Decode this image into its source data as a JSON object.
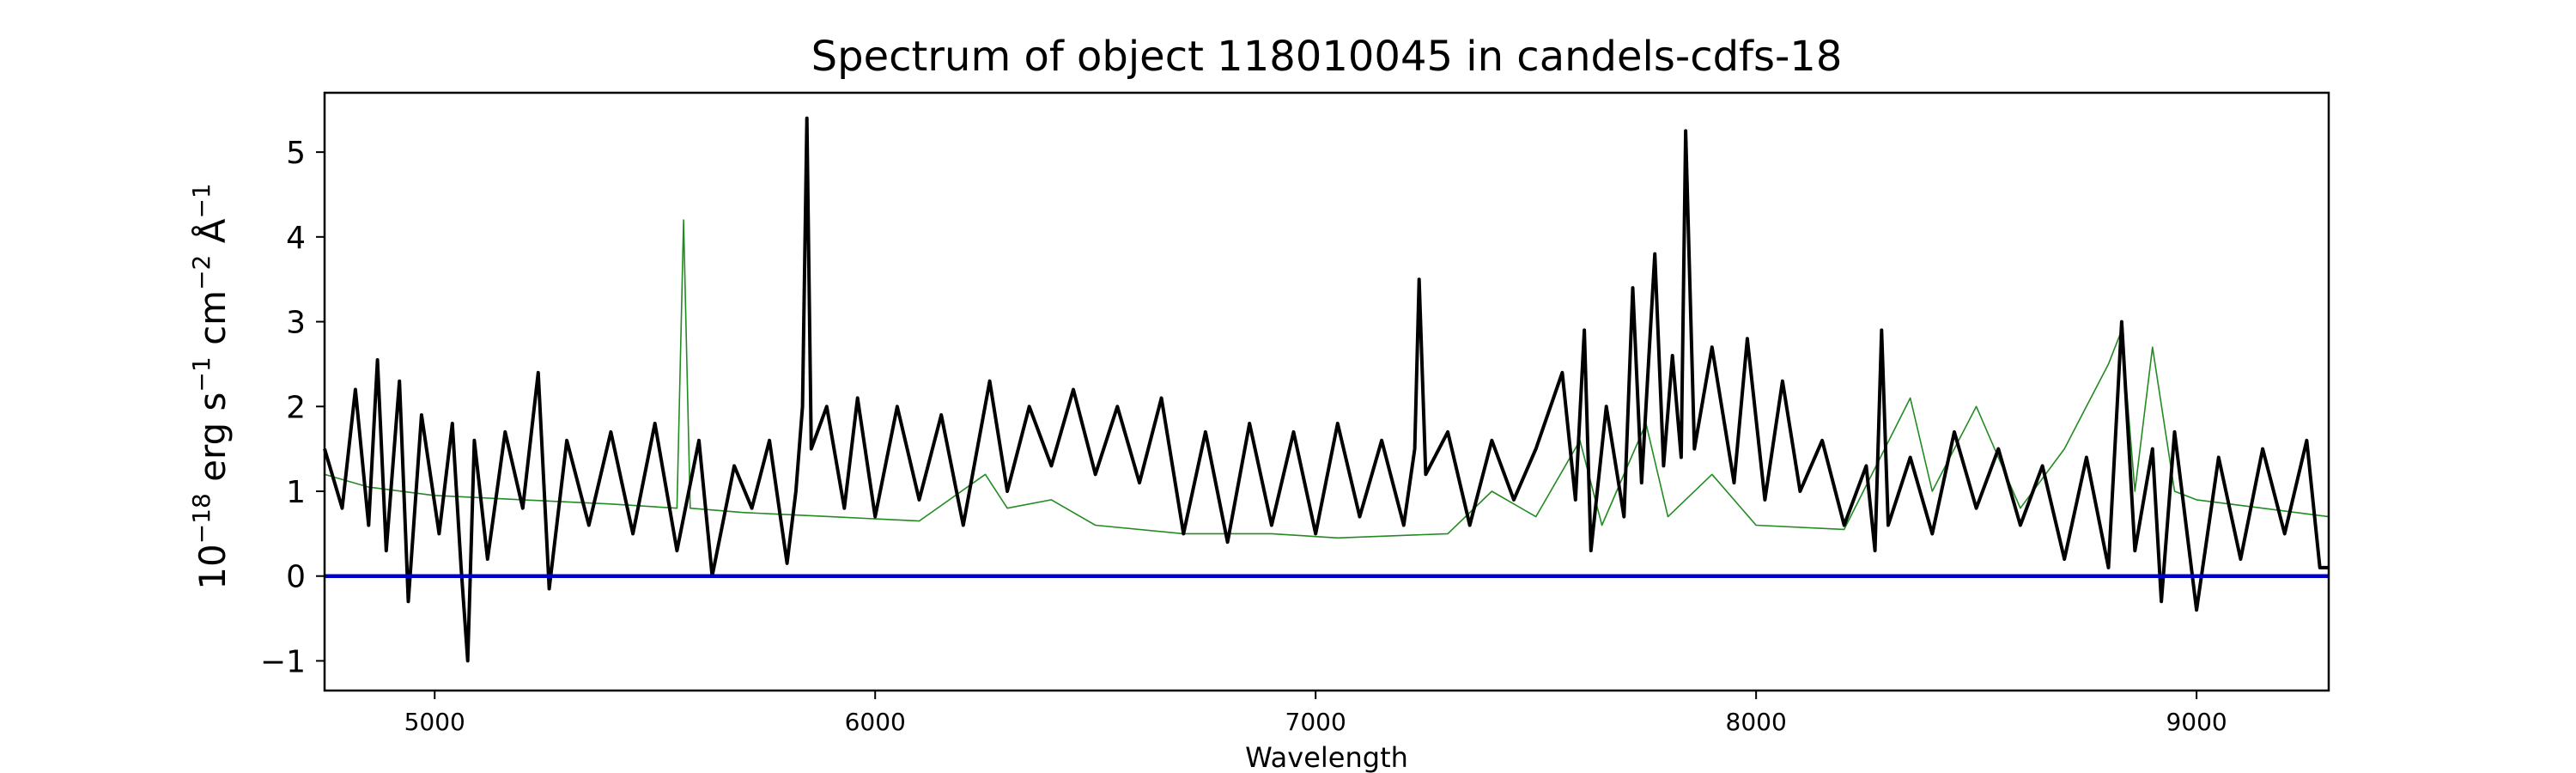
{
  "chart_data": {
    "type": "line",
    "title": "Spectrum of object 118010045 in candels-cdfs-18",
    "xlabel": "Wavelength",
    "ylabel_parts": {
      "base": "10",
      "exp": "−18",
      "erg": " erg s",
      "s_exp": "−1",
      "cm": " cm",
      "cm_exp": "−2",
      "ang": " Å",
      "ang_exp": "−1"
    },
    "xlim": [
      4750,
      9300
    ],
    "ylim": [
      -1.35,
      5.7
    ],
    "xticks": [
      5000,
      6000,
      7000,
      8000,
      9000
    ],
    "xtick_labels": [
      "5000",
      "6000",
      "7000",
      "8000",
      "9000"
    ],
    "yticks": [
      -1,
      0,
      1,
      2,
      3,
      4,
      5
    ],
    "ytick_labels": [
      "−1",
      "0",
      "1",
      "2",
      "3",
      "4",
      "5"
    ],
    "grid": false,
    "series": [
      {
        "role": "flux",
        "color": "#000000",
        "points": [
          [
            4750,
            1.5
          ],
          [
            4790,
            0.8
          ],
          [
            4820,
            2.2
          ],
          [
            4850,
            0.6
          ],
          [
            4870,
            2.55
          ],
          [
            4890,
            0.3
          ],
          [
            4920,
            2.3
          ],
          [
            4940,
            -0.3
          ],
          [
            4970,
            1.9
          ],
          [
            5010,
            0.5
          ],
          [
            5040,
            1.8
          ],
          [
            5060,
            0.1
          ],
          [
            5075,
            -1.0
          ],
          [
            5090,
            1.6
          ],
          [
            5120,
            0.2
          ],
          [
            5160,
            1.7
          ],
          [
            5200,
            0.8
          ],
          [
            5235,
            2.4
          ],
          [
            5260,
            -0.15
          ],
          [
            5300,
            1.6
          ],
          [
            5350,
            0.6
          ],
          [
            5400,
            1.7
          ],
          [
            5450,
            0.5
          ],
          [
            5500,
            1.8
          ],
          [
            5550,
            0.3
          ],
          [
            5600,
            1.6
          ],
          [
            5630,
            0.0
          ],
          [
            5680,
            1.3
          ],
          [
            5720,
            0.8
          ],
          [
            5760,
            1.6
          ],
          [
            5800,
            0.15
          ],
          [
            5820,
            1.0
          ],
          [
            5835,
            2.0
          ],
          [
            5845,
            5.4
          ],
          [
            5855,
            1.5
          ],
          [
            5890,
            2.0
          ],
          [
            5930,
            0.8
          ],
          [
            5960,
            2.1
          ],
          [
            6000,
            0.7
          ],
          [
            6050,
            2.0
          ],
          [
            6100,
            0.9
          ],
          [
            6150,
            1.9
          ],
          [
            6200,
            0.6
          ],
          [
            6260,
            2.3
          ],
          [
            6300,
            1.0
          ],
          [
            6350,
            2.0
          ],
          [
            6400,
            1.3
          ],
          [
            6450,
            2.2
          ],
          [
            6500,
            1.2
          ],
          [
            6550,
            2.0
          ],
          [
            6600,
            1.1
          ],
          [
            6650,
            2.1
          ],
          [
            6700,
            0.5
          ],
          [
            6750,
            1.7
          ],
          [
            6800,
            0.4
          ],
          [
            6850,
            1.8
          ],
          [
            6900,
            0.6
          ],
          [
            6950,
            1.7
          ],
          [
            7000,
            0.5
          ],
          [
            7050,
            1.8
          ],
          [
            7100,
            0.7
          ],
          [
            7150,
            1.6
          ],
          [
            7200,
            0.6
          ],
          [
            7225,
            1.5
          ],
          [
            7235,
            3.5
          ],
          [
            7250,
            1.2
          ],
          [
            7300,
            1.7
          ],
          [
            7350,
            0.6
          ],
          [
            7400,
            1.6
          ],
          [
            7450,
            0.9
          ],
          [
            7500,
            1.5
          ],
          [
            7560,
            2.4
          ],
          [
            7590,
            0.9
          ],
          [
            7610,
            2.9
          ],
          [
            7625,
            0.3
          ],
          [
            7660,
            2.0
          ],
          [
            7700,
            0.7
          ],
          [
            7720,
            3.4
          ],
          [
            7740,
            1.1
          ],
          [
            7770,
            3.8
          ],
          [
            7790,
            1.3
          ],
          [
            7810,
            2.6
          ],
          [
            7830,
            1.4
          ],
          [
            7840,
            5.25
          ],
          [
            7860,
            1.5
          ],
          [
            7900,
            2.7
          ],
          [
            7950,
            1.1
          ],
          [
            7980,
            2.8
          ],
          [
            8020,
            0.9
          ],
          [
            8060,
            2.3
          ],
          [
            8100,
            1.0
          ],
          [
            8150,
            1.6
          ],
          [
            8200,
            0.6
          ],
          [
            8250,
            1.3
          ],
          [
            8270,
            0.3
          ],
          [
            8285,
            2.9
          ],
          [
            8300,
            0.6
          ],
          [
            8350,
            1.4
          ],
          [
            8400,
            0.5
          ],
          [
            8450,
            1.7
          ],
          [
            8500,
            0.8
          ],
          [
            8550,
            1.5
          ],
          [
            8600,
            0.6
          ],
          [
            8650,
            1.3
          ],
          [
            8700,
            0.2
          ],
          [
            8750,
            1.4
          ],
          [
            8800,
            0.1
          ],
          [
            8830,
            3.0
          ],
          [
            8860,
            0.3
          ],
          [
            8900,
            1.5
          ],
          [
            8920,
            -0.3
          ],
          [
            8950,
            1.7
          ],
          [
            9000,
            -0.4
          ],
          [
            9050,
            1.4
          ],
          [
            9100,
            0.2
          ],
          [
            9150,
            1.5
          ],
          [
            9200,
            0.5
          ],
          [
            9250,
            1.6
          ],
          [
            9280,
            0.1
          ],
          [
            9300,
            0.1
          ]
        ]
      },
      {
        "role": "error",
        "color": "#228b22",
        "points": [
          [
            4750,
            1.2
          ],
          [
            4850,
            1.05
          ],
          [
            5000,
            0.95
          ],
          [
            5200,
            0.9
          ],
          [
            5400,
            0.85
          ],
          [
            5550,
            0.8
          ],
          [
            5565,
            4.2
          ],
          [
            5580,
            0.8
          ],
          [
            5700,
            0.75
          ],
          [
            5900,
            0.7
          ],
          [
            6100,
            0.65
          ],
          [
            6250,
            1.2
          ],
          [
            6300,
            0.8
          ],
          [
            6400,
            0.9
          ],
          [
            6500,
            0.6
          ],
          [
            6700,
            0.5
          ],
          [
            6900,
            0.5
          ],
          [
            7050,
            0.45
          ],
          [
            7300,
            0.5
          ],
          [
            7400,
            1.0
          ],
          [
            7500,
            0.7
          ],
          [
            7600,
            1.6
          ],
          [
            7650,
            0.6
          ],
          [
            7750,
            1.8
          ],
          [
            7800,
            0.7
          ],
          [
            7900,
            1.2
          ],
          [
            8000,
            0.6
          ],
          [
            8200,
            0.55
          ],
          [
            8350,
            2.1
          ],
          [
            8400,
            1.0
          ],
          [
            8500,
            2.0
          ],
          [
            8600,
            0.8
          ],
          [
            8700,
            1.5
          ],
          [
            8800,
            2.5
          ],
          [
            8830,
            2.9
          ],
          [
            8860,
            1.0
          ],
          [
            8900,
            2.7
          ],
          [
            8950,
            1.0
          ],
          [
            9000,
            0.9
          ],
          [
            9150,
            0.8
          ],
          [
            9300,
            0.7
          ]
        ]
      },
      {
        "role": "zero-line",
        "color": "#0000cc",
        "points": [
          [
            4750,
            0
          ],
          [
            9300,
            0
          ]
        ]
      }
    ]
  }
}
